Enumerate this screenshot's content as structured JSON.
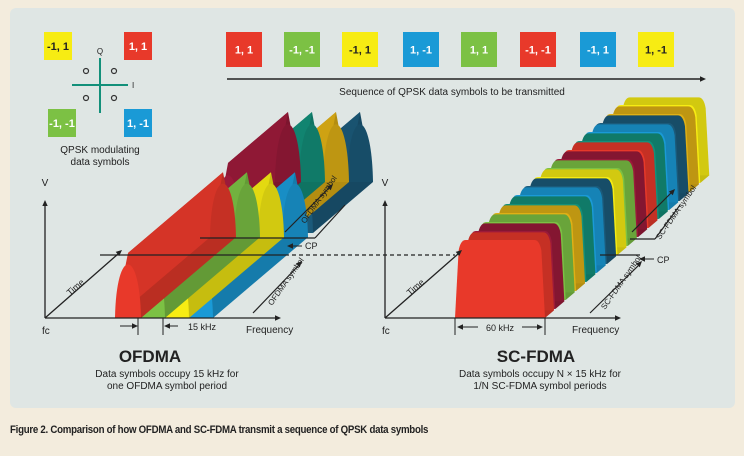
{
  "qpsk": {
    "title_line1": "QPSK modulating",
    "title_line2": "data symbols",
    "axis_q": "Q",
    "axis_i": "I",
    "quadrants": [
      {
        "label": "-1, 1",
        "color": "#f7ec13",
        "text_color": "#222222"
      },
      {
        "label": "1, 1",
        "color": "#e8392a",
        "text_color": "#ffffff"
      },
      {
        "label": "-1, -1",
        "color": "#7cc144",
        "text_color": "#ffffff"
      },
      {
        "label": "1, -1",
        "color": "#1a9ad6",
        "text_color": "#ffffff"
      }
    ]
  },
  "sequence": {
    "caption": "Sequence of QPSK data symbols to be transmitted",
    "symbols": [
      {
        "label": "1, 1",
        "color": "#e8392a",
        "text_color": "#ffffff"
      },
      {
        "label": "-1, -1",
        "color": "#7cc144",
        "text_color": "#ffffff"
      },
      {
        "label": "-1, 1",
        "color": "#f7ec13",
        "text_color": "#222222"
      },
      {
        "label": "1, -1",
        "color": "#1a9ad6",
        "text_color": "#ffffff"
      },
      {
        "label": "1, 1",
        "color": "#7cc144",
        "text_color": "#ffffff"
      },
      {
        "label": "-1, -1",
        "color": "#e8392a",
        "text_color": "#ffffff"
      },
      {
        "label": "-1, 1",
        "color": "#1a9ad6",
        "text_color": "#ffffff"
      },
      {
        "label": "1, -1",
        "color": "#f7ec13",
        "text_color": "#222222"
      }
    ]
  },
  "ofdma": {
    "title": "OFDMA",
    "desc_line1": "Data symbols occupy 15 kHz for",
    "desc_line2": "one OFDMA symbol period",
    "axis_v": "V",
    "axis_time": "Time",
    "axis_freq": "Frequency",
    "fc": "fc",
    "bandwidth": "15 kHz",
    "cp": "CP",
    "symbol_label": "OFDMA symbol",
    "front_colors": [
      "#e8392a",
      "#7cc144",
      "#f7ec13",
      "#1a9ad6"
    ],
    "back_colors": [
      "#9b1a3a",
      "#13907a",
      "#e0b015",
      "#1b5a7a"
    ]
  },
  "scfdma": {
    "title": "SC-FDMA",
    "desc_line1": "Data symbols occupy N × 15 kHz for",
    "desc_line2": "1/N SC-FDMA symbol periods",
    "axis_v": "V",
    "axis_time": "Time",
    "axis_freq": "Frequency",
    "fc": "fc",
    "bandwidth": "60 kHz",
    "cp": "CP",
    "symbol_label": "SC-FDMA symbol",
    "slab_colors": [
      "#e8392a",
      "#9b1a3a",
      "#7cc144",
      "#e0b015",
      "#13907a",
      "#1a9ad6",
      "#1b5a7a",
      "#f7ec13",
      "#7cc144",
      "#9b1a3a",
      "#e8392a",
      "#13907a",
      "#1a9ad6",
      "#1b5a7a",
      "#e0b015",
      "#f7ec13"
    ]
  },
  "figure_caption": "Figure 2. Comparison of how OFDMA and SC-FDMA transmit a sequence of QPSK data symbols"
}
